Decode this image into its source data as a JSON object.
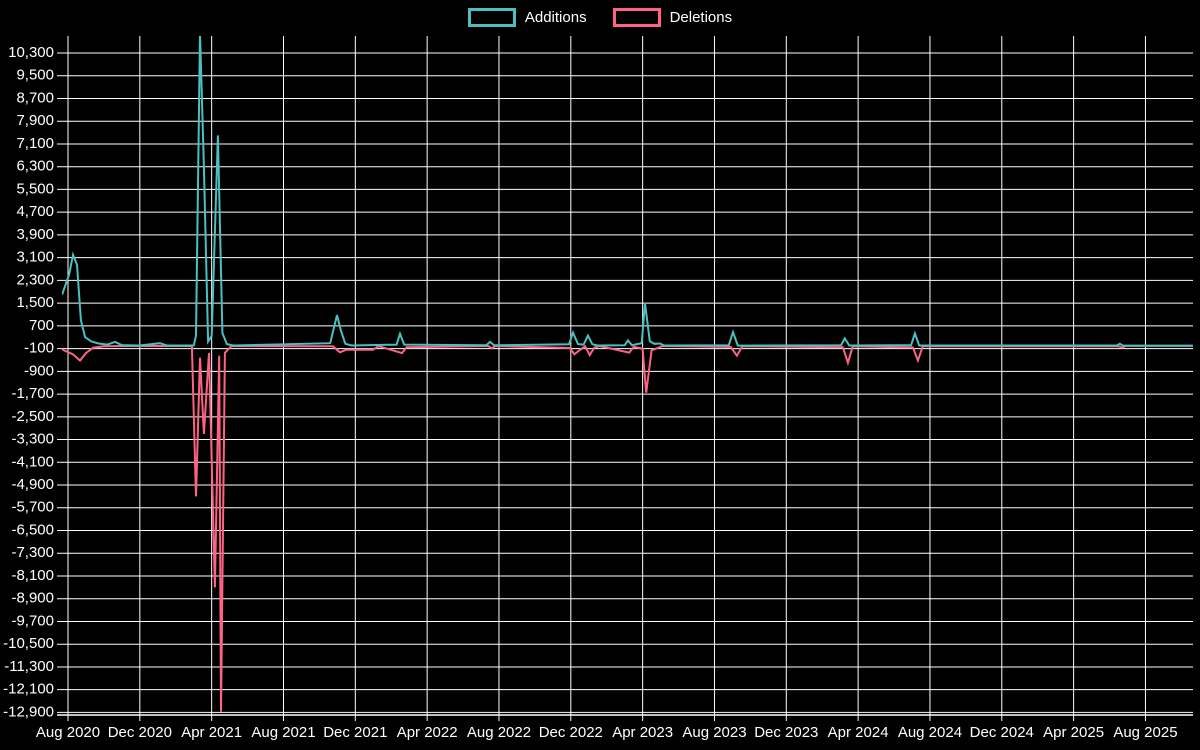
{
  "chart_data": {
    "type": "line",
    "title": "",
    "background_color": "#000000",
    "grid_color": "#ffffff",
    "text_color": "#ffffff",
    "grid": true,
    "legend_position": "top",
    "legend": [
      {
        "label": "Additions",
        "color": "#4bc0c0"
      },
      {
        "label": "Deletions",
        "color": "#ff6384"
      }
    ],
    "x_ticks": [
      "Aug 2020",
      "Dec 2020",
      "Apr 2021",
      "Aug 2021",
      "Dec 2021",
      "Apr 2022",
      "Aug 2022",
      "Dec 2022",
      "Apr 2023",
      "Aug 2023",
      "Dec 2023",
      "Apr 2024",
      "Aug 2024",
      "Dec 2024",
      "Apr 2025",
      "Aug 2025"
    ],
    "y_ticks": [
      10300,
      9500,
      8700,
      7900,
      7100,
      6300,
      5500,
      4700,
      3900,
      3100,
      2300,
      1500,
      700,
      -100,
      -900,
      -1700,
      -2500,
      -3300,
      -4100,
      -4900,
      -5700,
      -6500,
      -7300,
      -8100,
      -8900,
      -9700,
      -10500,
      -11300,
      -12100,
      -12900
    ],
    "y_tick_step": 800,
    "ylim": [
      -13050,
      10900
    ],
    "x_unit": "months since Aug 2020",
    "xlim": [
      -0.35,
      62.64
    ],
    "series": [
      {
        "name": "Additions",
        "color": "#4bc0c0",
        "points": [
          [
            -0.33,
            1800
          ],
          [
            0.06,
            2500
          ],
          [
            0.28,
            3200
          ],
          [
            0.5,
            2850
          ],
          [
            0.72,
            900
          ],
          [
            0.95,
            300
          ],
          [
            1.3,
            150
          ],
          [
            1.7,
            80
          ],
          [
            2.2,
            40
          ],
          [
            2.62,
            140
          ],
          [
            3.0,
            20
          ],
          [
            4.0,
            10
          ],
          [
            5.12,
            90
          ],
          [
            5.5,
            10
          ],
          [
            7.0,
            10
          ],
          [
            7.13,
            350
          ],
          [
            7.35,
            11000
          ],
          [
            7.57,
            6300
          ],
          [
            7.8,
            150
          ],
          [
            8.0,
            350
          ],
          [
            8.35,
            7400
          ],
          [
            8.6,
            450
          ],
          [
            8.85,
            60
          ],
          [
            9.2,
            10
          ],
          [
            14.6,
            90
          ],
          [
            14.98,
            1080
          ],
          [
            15.2,
            520
          ],
          [
            15.45,
            70
          ],
          [
            15.8,
            10
          ],
          [
            18.3,
            40
          ],
          [
            18.49,
            420
          ],
          [
            18.72,
            40
          ],
          [
            23.3,
            20
          ],
          [
            23.5,
            140
          ],
          [
            23.72,
            15
          ],
          [
            27.9,
            50
          ],
          [
            28.12,
            460
          ],
          [
            28.4,
            60
          ],
          [
            28.72,
            40
          ],
          [
            28.95,
            360
          ],
          [
            29.2,
            50
          ],
          [
            29.5,
            10
          ],
          [
            31.0,
            15
          ],
          [
            31.18,
            190
          ],
          [
            31.4,
            20
          ],
          [
            31.95,
            90
          ],
          [
            32.13,
            1500
          ],
          [
            32.4,
            160
          ],
          [
            32.65,
            70
          ],
          [
            32.96,
            80
          ],
          [
            33.2,
            10
          ],
          [
            36.8,
            20
          ],
          [
            37.03,
            480
          ],
          [
            37.3,
            5
          ],
          [
            43.05,
            20
          ],
          [
            43.26,
            260
          ],
          [
            43.5,
            10
          ],
          [
            46.95,
            20
          ],
          [
            47.16,
            430
          ],
          [
            47.4,
            10
          ],
          [
            58.4,
            10
          ],
          [
            58.57,
            70
          ],
          [
            58.75,
            5
          ],
          [
            62.64,
            5
          ]
        ]
      },
      {
        "name": "Deletions",
        "color": "#ff6384",
        "points": [
          [
            -0.33,
            -130
          ],
          [
            0.28,
            -300
          ],
          [
            0.67,
            -520
          ],
          [
            1.0,
            -260
          ],
          [
            1.4,
            -70
          ],
          [
            2.0,
            -20
          ],
          [
            3.0,
            -10
          ],
          [
            6.9,
            -10
          ],
          [
            7.13,
            -5300
          ],
          [
            7.35,
            -420
          ],
          [
            7.57,
            -3100
          ],
          [
            7.85,
            -250
          ],
          [
            8.18,
            -8500
          ],
          [
            8.42,
            -350
          ],
          [
            8.52,
            -12880
          ],
          [
            8.74,
            -250
          ],
          [
            9.1,
            -10
          ],
          [
            14.75,
            -20
          ],
          [
            15.14,
            -230
          ],
          [
            15.5,
            -140
          ],
          [
            16.98,
            -140
          ],
          [
            17.3,
            -15
          ],
          [
            18.6,
            -260
          ],
          [
            18.85,
            -50
          ],
          [
            23.4,
            -10
          ],
          [
            23.6,
            -90
          ],
          [
            23.8,
            -10
          ],
          [
            27.95,
            -80
          ],
          [
            28.2,
            -300
          ],
          [
            28.5,
            -150
          ],
          [
            28.8,
            -20
          ],
          [
            29.05,
            -330
          ],
          [
            29.3,
            -70
          ],
          [
            29.6,
            -10
          ],
          [
            31.25,
            -240
          ],
          [
            31.5,
            -40
          ],
          [
            32.0,
            -100
          ],
          [
            32.2,
            -1650
          ],
          [
            32.5,
            -160
          ],
          [
            32.8,
            -90
          ],
          [
            33.1,
            -10
          ],
          [
            36.9,
            -40
          ],
          [
            37.25,
            -350
          ],
          [
            37.55,
            -15
          ],
          [
            43.15,
            -50
          ],
          [
            43.43,
            -600
          ],
          [
            43.7,
            -20
          ],
          [
            47.05,
            -60
          ],
          [
            47.33,
            -520
          ],
          [
            47.6,
            -15
          ],
          [
            58.5,
            -15
          ],
          [
            58.7,
            -70
          ],
          [
            58.9,
            -5
          ],
          [
            62.64,
            -5
          ]
        ]
      }
    ]
  }
}
